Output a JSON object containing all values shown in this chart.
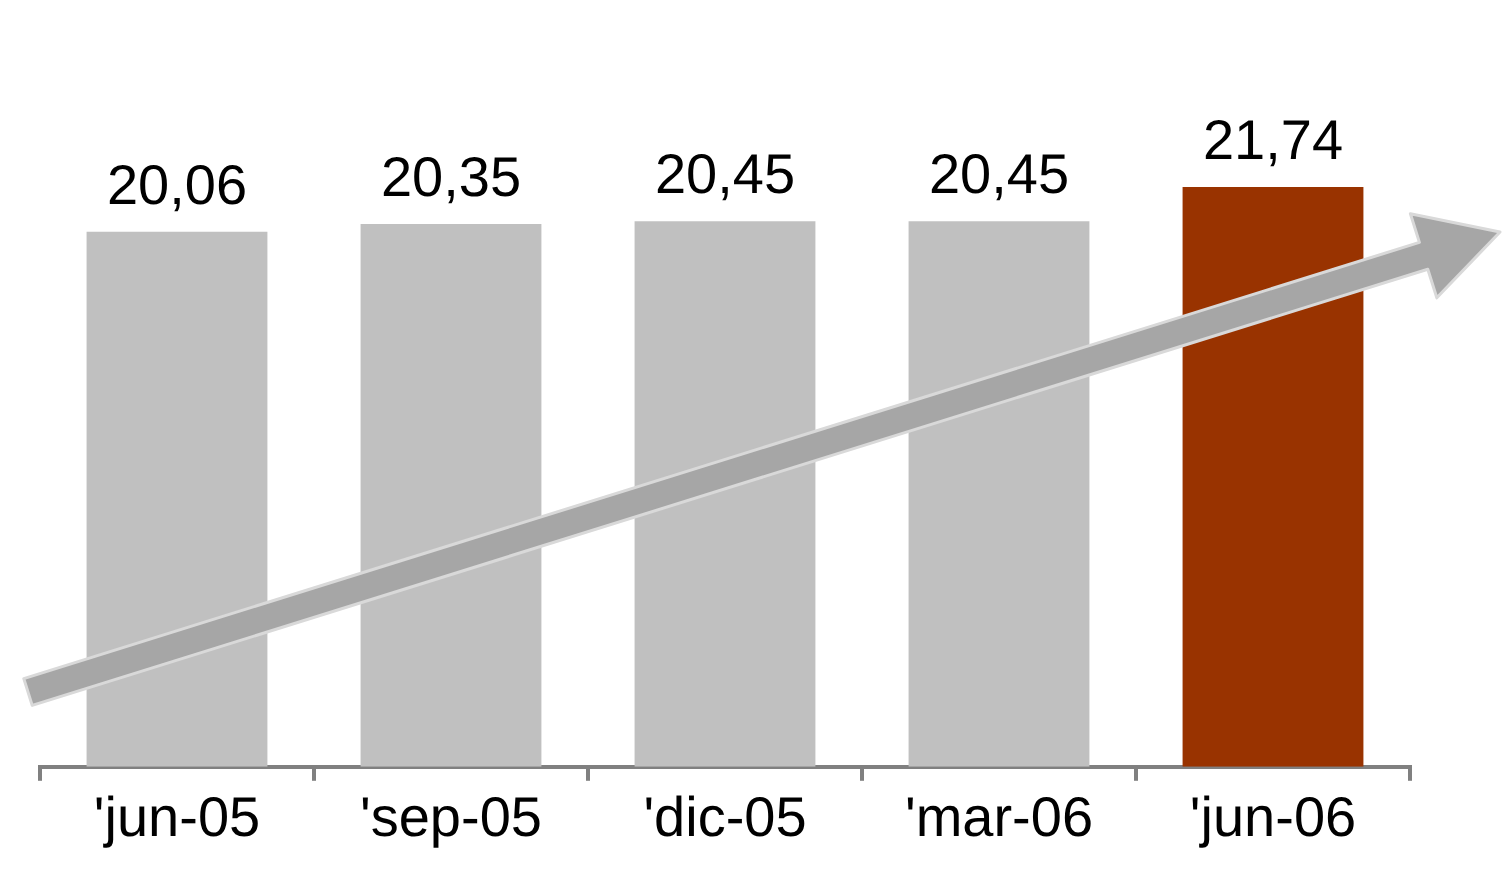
{
  "chart_data": {
    "type": "bar",
    "categories": [
      "'jun-05",
      "'sep-05",
      "'dic-05",
      "'mar-06",
      "'jun-06"
    ],
    "values": [
      20.06,
      20.35,
      20.45,
      20.45,
      21.74
    ],
    "colors": [
      "#c0c0c0",
      "#c0c0c0",
      "#c0c0c0",
      "#c0c0c0",
      "#993300"
    ],
    "value_labels": [
      "20,06",
      "20,35",
      "20,45",
      "20,45",
      "21,74"
    ],
    "tick_labels": "x"
  }
}
